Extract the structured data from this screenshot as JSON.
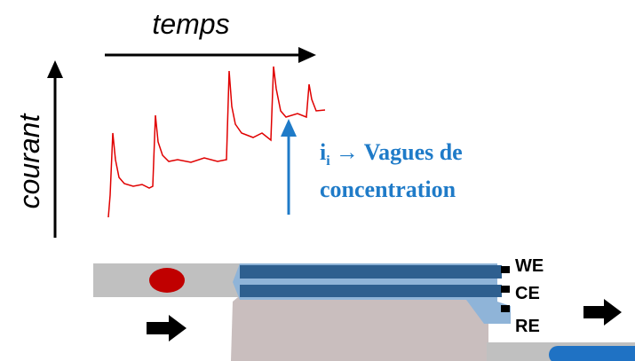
{
  "axes": {
    "x_label": "temps",
    "y_label": "courant"
  },
  "annotation": {
    "symbol": "i",
    "subscript": "i",
    "line1": "→ Vagues de",
    "line2": "concentration"
  },
  "electrodes": [
    "WE",
    "CE",
    "RE"
  ]
}
